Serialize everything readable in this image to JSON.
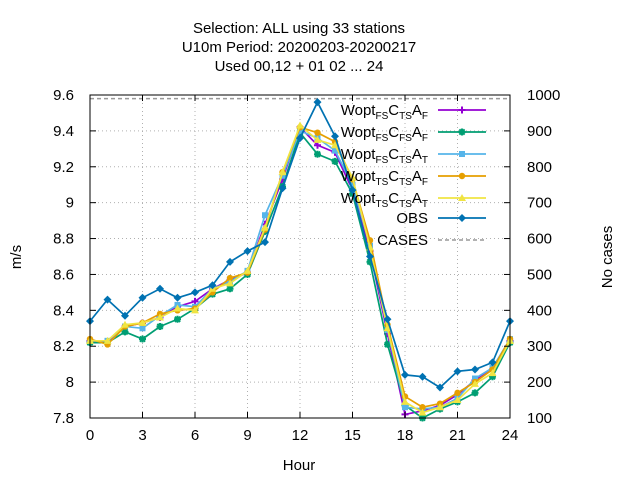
{
  "chart_data": {
    "type": "line",
    "title_lines": [
      "Selection: ALL using    33 stations",
      "U10m   Period: 20200203-20200217",
      "Used  00,12  + 01 02 ... 24"
    ],
    "xlabel": "Hour",
    "ylabel": "m/s",
    "y2label": "No cases",
    "xlim": [
      0,
      24
    ],
    "ylim": [
      7.8,
      9.6
    ],
    "y2lim": [
      100,
      1000
    ],
    "xticks": [
      "0",
      "3",
      "6",
      "9",
      "12",
      "15",
      "18",
      "21",
      "24"
    ],
    "yticks": [
      "7.8",
      "8",
      "8.2",
      "8.4",
      "8.6",
      "8.8",
      "9",
      "9.2",
      "9.4",
      "9.6"
    ],
    "y2ticks": [
      "100",
      "200",
      "300",
      "400",
      "500",
      "600",
      "700",
      "800",
      "900",
      "1000"
    ],
    "grid": true,
    "legend_position": "top-right",
    "x": [
      0,
      1,
      2,
      3,
      4,
      5,
      6,
      7,
      8,
      9,
      10,
      11,
      12,
      13,
      14,
      15,
      16,
      17,
      18,
      19,
      20,
      21,
      22,
      23,
      24
    ],
    "series": [
      {
        "name": "Wopt FS CTS AF",
        "color": "#9400d3",
        "marker": "plus",
        "legend": {
          "parts": [
            {
              "t": "Wopt",
              "s": false
            },
            {
              "t": "FS",
              "s": true
            },
            {
              "t": "C",
              "s": false
            },
            {
              "t": "TS",
              "s": true
            },
            {
              "t": "A",
              "s": false
            },
            {
              "t": "F",
              "s": true
            }
          ]
        },
        "values": [
          8.23,
          8.22,
          8.31,
          8.33,
          8.36,
          8.42,
          8.45,
          8.52,
          8.57,
          8.61,
          8.88,
          9.13,
          9.42,
          9.32,
          9.28,
          9.07,
          8.73,
          8.27,
          7.82,
          7.84,
          7.87,
          7.93,
          8.01,
          8.07,
          8.23
        ]
      },
      {
        "name": "Wopt FS CFS AF",
        "color": "#009e73",
        "marker": "star",
        "legend": {
          "parts": [
            {
              "t": "Wopt",
              "s": false
            },
            {
              "t": "FS",
              "s": true
            },
            {
              "t": "C",
              "s": false
            },
            {
              "t": "FS",
              "s": true
            },
            {
              "t": "A",
              "s": false
            },
            {
              "t": "F",
              "s": true
            }
          ]
        },
        "values": [
          8.22,
          8.22,
          8.28,
          8.24,
          8.31,
          8.35,
          8.41,
          8.49,
          8.52,
          8.6,
          8.84,
          9.09,
          9.39,
          9.27,
          9.23,
          9.05,
          8.67,
          8.21,
          7.87,
          7.8,
          7.85,
          7.89,
          7.94,
          8.03,
          8.22
        ]
      },
      {
        "name": "Wopt FS CTS AT",
        "color": "#56b4e9",
        "marker": "box",
        "legend": {
          "parts": [
            {
              "t": "Wopt",
              "s": false
            },
            {
              "t": "FS",
              "s": true
            },
            {
              "t": "C",
              "s": false
            },
            {
              "t": "TS",
              "s": true
            },
            {
              "t": "A",
              "s": false
            },
            {
              "t": "T",
              "s": true
            }
          ]
        },
        "values": [
          8.23,
          8.23,
          8.31,
          8.3,
          8.37,
          8.43,
          8.42,
          8.52,
          8.56,
          8.62,
          8.93,
          9.15,
          9.4,
          9.36,
          9.29,
          9.1,
          8.76,
          8.29,
          7.86,
          7.85,
          7.86,
          7.91,
          8.02,
          8.08,
          8.24
        ]
      },
      {
        "name": "Wopt TS CTS AF",
        "color": "#e69f00",
        "marker": "circle",
        "legend": {
          "parts": [
            {
              "t": "Wopt",
              "s": false
            },
            {
              "t": "TS",
              "s": true
            },
            {
              "t": "C",
              "s": false
            },
            {
              "t": "TS",
              "s": true
            },
            {
              "t": "A",
              "s": false
            },
            {
              "t": "F",
              "s": true
            }
          ]
        },
        "values": [
          8.24,
          8.21,
          8.31,
          8.33,
          8.38,
          8.4,
          8.41,
          8.5,
          8.58,
          8.61,
          8.85,
          9.17,
          9.42,
          9.39,
          9.34,
          9.13,
          8.79,
          8.32,
          7.92,
          7.86,
          7.88,
          7.94,
          8.0,
          8.07,
          8.24
        ]
      },
      {
        "name": "Wopt TS CTS AT",
        "color": "#f0e442",
        "marker": "triangle",
        "legend": {
          "parts": [
            {
              "t": "Wopt",
              "s": false
            },
            {
              "t": "TS",
              "s": true
            },
            {
              "t": "C",
              "s": false
            },
            {
              "t": "TS",
              "s": true
            },
            {
              "t": "A",
              "s": false
            },
            {
              "t": "T",
              "s": true
            }
          ]
        },
        "values": [
          8.23,
          8.23,
          8.32,
          8.33,
          8.36,
          8.41,
          8.4,
          8.52,
          8.55,
          8.62,
          8.86,
          9.17,
          9.43,
          9.35,
          9.32,
          9.14,
          8.75,
          8.3,
          7.89,
          7.83,
          7.86,
          7.9,
          7.99,
          8.05,
          8.23
        ]
      },
      {
        "name": "OBS",
        "color": "#0072b2",
        "marker": "diamond",
        "legend": {
          "parts": [
            {
              "t": "OBS",
              "s": false
            }
          ]
        },
        "values": [
          8.34,
          8.46,
          8.37,
          8.47,
          8.52,
          8.47,
          8.5,
          8.54,
          8.67,
          8.73,
          8.78,
          9.08,
          9.36,
          9.56,
          9.37,
          9.07,
          8.7,
          8.35,
          8.04,
          8.03,
          7.97,
          8.06,
          8.07,
          8.11,
          8.34
        ]
      }
    ],
    "cases": {
      "name": "CASES",
      "color": "#999999",
      "dashed": true,
      "axis": "y2",
      "value": 990
    }
  }
}
